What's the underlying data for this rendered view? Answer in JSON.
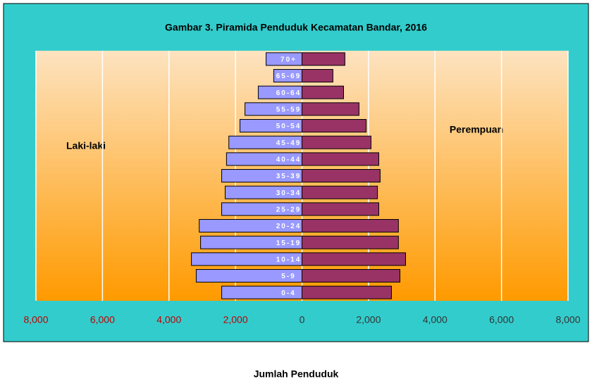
{
  "chart_data": {
    "type": "pyramid",
    "title": "Gambar 3. Piramida Penduduk Kecamatan Bandar, 2016",
    "x_label": "Jumlah Penduduk",
    "annotations": [
      "Laki-laki",
      "Perempuan"
    ],
    "categories": [
      "0-4",
      "5-9",
      "10-14",
      "15-19",
      "20-24",
      "25-29",
      "30-34",
      "35-39",
      "40-44",
      "45-49",
      "50-54",
      "55-59",
      "60-64",
      "65-69",
      "70+"
    ],
    "series": [
      {
        "name": "Laki-laki",
        "color": "#9999ff",
        "values": [
          -2415,
          -3180,
          -3325,
          -3050,
          -3090,
          -2415,
          -2310,
          -2415,
          -2270,
          -2200,
          -1865,
          -1715,
          -1315,
          -850,
          -1080
        ]
      },
      {
        "name": "Perempuan",
        "color": "#993366",
        "values": [
          2690,
          2945,
          3115,
          2900,
          2900,
          2310,
          2270,
          2350,
          2310,
          2075,
          1930,
          1715,
          1250,
          930,
          1290
        ]
      }
    ],
    "xlim": [
      -8000,
      8000
    ],
    "xticks": [
      {
        "value": -8000,
        "label": "8,000"
      },
      {
        "value": -6000,
        "label": "6,000"
      },
      {
        "value": -4000,
        "label": "4,000"
      },
      {
        "value": -2000,
        "label": "2,000"
      },
      0,
      {
        "value": 2000,
        "label": "2,000"
      },
      {
        "value": 4000,
        "label": "4,000"
      },
      {
        "value": 6000,
        "label": "6,000"
      },
      {
        "value": 8000,
        "label": "8,000"
      }
    ],
    "grid": true
  }
}
